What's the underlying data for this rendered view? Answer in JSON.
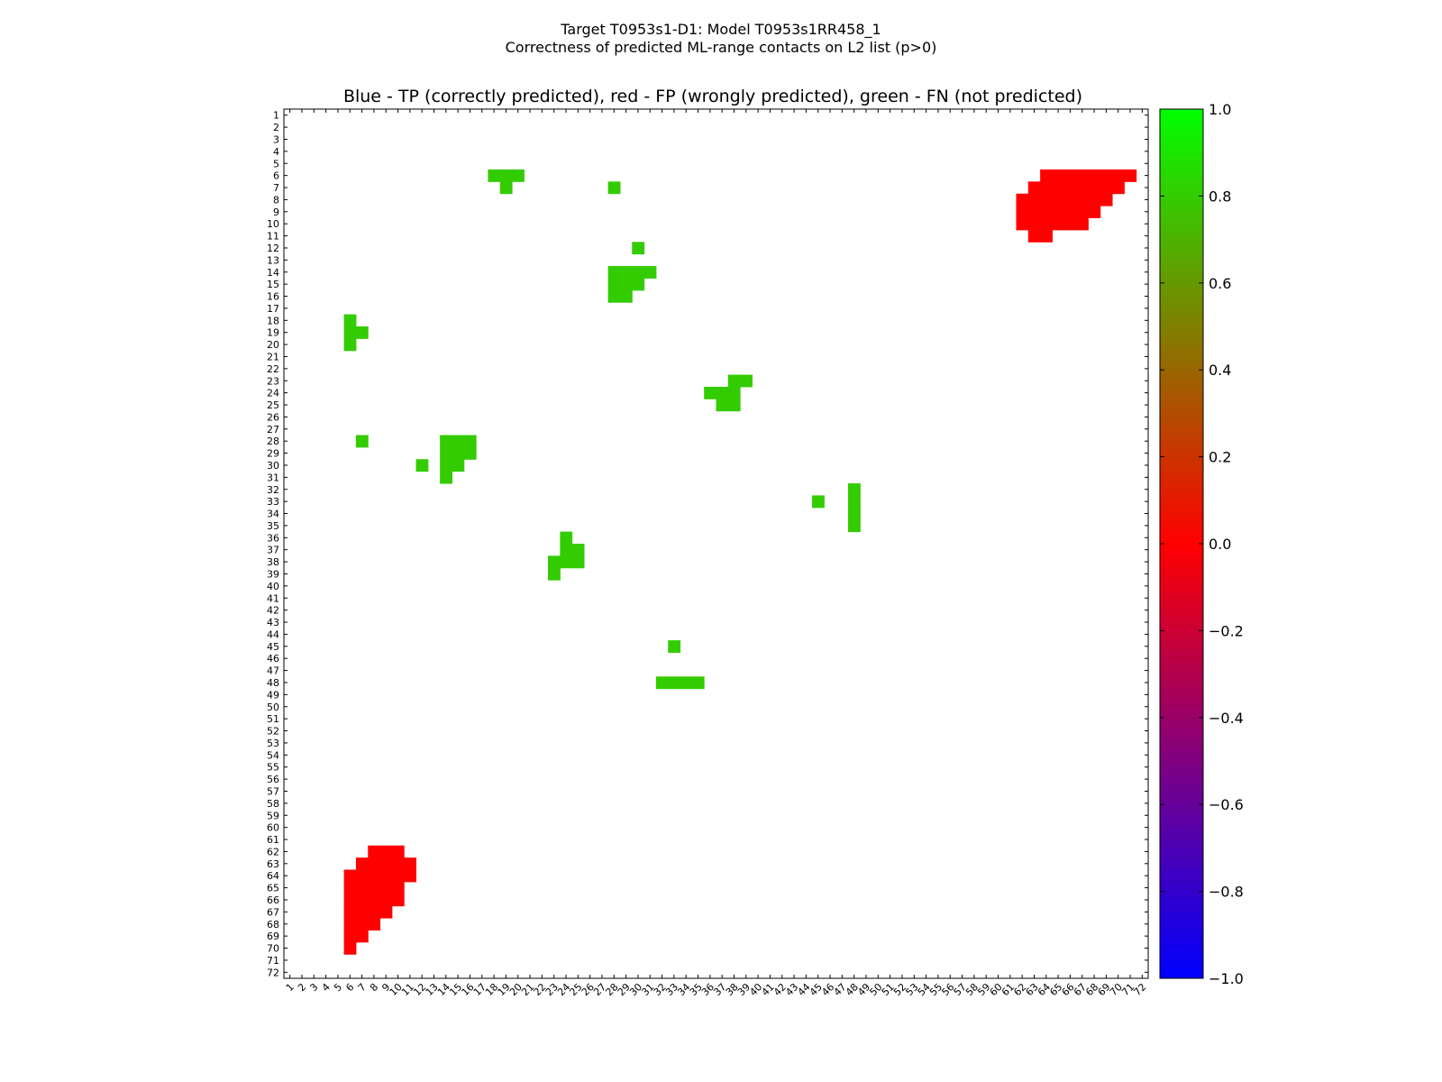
{
  "chart_data": {
    "type": "heatmap",
    "suptitle_line1": "Target T0953s1-D1: Model T0953s1RR458_1",
    "suptitle_line2": "Correctness of predicted ML-range contacts on L2 list (p>0)",
    "title": "Blue - TP (correctly predicted), red - FP (wrongly predicted), green - FN (not predicted)",
    "x_range": [
      1,
      72
    ],
    "y_range": [
      1,
      72
    ],
    "x_ticks": [
      1,
      2,
      3,
      4,
      5,
      6,
      7,
      8,
      9,
      10,
      11,
      12,
      13,
      14,
      15,
      16,
      17,
      18,
      19,
      20,
      21,
      22,
      23,
      24,
      25,
      26,
      27,
      28,
      29,
      30,
      31,
      32,
      33,
      34,
      35,
      36,
      37,
      38,
      39,
      40,
      41,
      42,
      43,
      44,
      45,
      46,
      47,
      48,
      49,
      50,
      51,
      52,
      53,
      54,
      55,
      56,
      57,
      58,
      59,
      60,
      61,
      62,
      63,
      64,
      65,
      66,
      67,
      68,
      69,
      70,
      71,
      72
    ],
    "x_tick_labels": [
      "1",
      "2",
      "3",
      "4",
      "5",
      "6",
      "7",
      "8",
      "9",
      "10",
      "11",
      "12",
      "13",
      "14",
      "15",
      "16",
      "17",
      "18",
      "19",
      "20",
      "21",
      "22",
      "23",
      "24",
      "25",
      "26",
      "27",
      "28",
      "29",
      "30",
      "31",
      "32",
      "33",
      "34",
      "35",
      "36",
      "37",
      "38",
      "39",
      "40",
      "41",
      "42",
      "43",
      "44",
      "45",
      "46",
      "47",
      "48",
      "49",
      "50",
      "51",
      "52",
      "53",
      "54",
      "55",
      "56",
      "57",
      "58",
      "59",
      "60",
      "61",
      "62",
      "63",
      "64",
      "65",
      "66",
      "67",
      "68",
      "69",
      "70",
      "71",
      "72"
    ],
    "y_ticks": [
      1,
      2,
      3,
      4,
      5,
      6,
      7,
      8,
      9,
      10,
      11,
      12,
      13,
      14,
      15,
      16,
      17,
      18,
      19,
      20,
      21,
      22,
      23,
      24,
      25,
      26,
      27,
      28,
      29,
      30,
      31,
      32,
      33,
      34,
      35,
      36,
      37,
      38,
      39,
      40,
      41,
      42,
      43,
      44,
      45,
      46,
      47,
      48,
      49,
      50,
      51,
      52,
      53,
      54,
      55,
      56,
      57,
      58,
      59,
      60,
      61,
      62,
      63,
      64,
      65,
      66,
      67,
      68,
      69,
      70,
      71,
      72
    ],
    "y_tick_labels": [
      "1",
      "2",
      "3",
      "4",
      "5",
      "6",
      "7",
      "8",
      "9",
      "10",
      "11",
      "12",
      "13",
      "14",
      "15",
      "16",
      "17",
      "18",
      "19",
      "20",
      "21",
      "22",
      "23",
      "24",
      "25",
      "26",
      "27",
      "28",
      "29",
      "30",
      "31",
      "32",
      "33",
      "34",
      "35",
      "36",
      "37",
      "38",
      "39",
      "40",
      "41",
      "42",
      "43",
      "44",
      "45",
      "46",
      "47",
      "48",
      "49",
      "50",
      "51",
      "52",
      "53",
      "54",
      "55",
      "56",
      "57",
      "58",
      "59",
      "60",
      "61",
      "62",
      "63",
      "64",
      "65",
      "66",
      "67",
      "68",
      "69",
      "70",
      "71",
      "72"
    ],
    "colorbar": {
      "min": -1.0,
      "max": 1.0,
      "ticks": [
        1.0,
        0.8,
        0.6,
        0.4,
        0.2,
        0.0,
        -0.2,
        -0.4,
        -0.6,
        -0.8,
        -1.0
      ],
      "tick_labels": [
        "1.0",
        "0.8",
        "0.6",
        "0.4",
        "0.2",
        "0.0",
        "−0.2",
        "−0.4",
        "−0.6",
        "−0.8",
        "−1.0"
      ]
    },
    "series": [
      {
        "category": "FN",
        "value": 0.8,
        "color": "#33cc00",
        "cells": [
          [
            18,
            6
          ],
          [
            19,
            6
          ],
          [
            20,
            6
          ],
          [
            19,
            7
          ],
          [
            28,
            7
          ],
          [
            30,
            12
          ],
          [
            28,
            14
          ],
          [
            29,
            14
          ],
          [
            30,
            14
          ],
          [
            31,
            14
          ],
          [
            28,
            15
          ],
          [
            29,
            15
          ],
          [
            30,
            15
          ],
          [
            28,
            16
          ],
          [
            29,
            16
          ],
          [
            6,
            18
          ],
          [
            6,
            19
          ],
          [
            7,
            19
          ],
          [
            6,
            20
          ],
          [
            38,
            23
          ],
          [
            39,
            23
          ],
          [
            36,
            24
          ],
          [
            37,
            24
          ],
          [
            38,
            24
          ],
          [
            37,
            25
          ],
          [
            38,
            25
          ],
          [
            7,
            28
          ],
          [
            14,
            28
          ],
          [
            15,
            28
          ],
          [
            16,
            28
          ],
          [
            14,
            29
          ],
          [
            15,
            29
          ],
          [
            16,
            29
          ],
          [
            12,
            30
          ],
          [
            14,
            30
          ],
          [
            15,
            30
          ],
          [
            14,
            31
          ],
          [
            48,
            32
          ],
          [
            45,
            33
          ],
          [
            48,
            33
          ],
          [
            48,
            34
          ],
          [
            48,
            35
          ],
          [
            24,
            36
          ],
          [
            24,
            37
          ],
          [
            25,
            37
          ],
          [
            23,
            38
          ],
          [
            24,
            38
          ],
          [
            25,
            38
          ],
          [
            23,
            39
          ],
          [
            33,
            45
          ],
          [
            32,
            48
          ],
          [
            33,
            48
          ],
          [
            34,
            48
          ],
          [
            35,
            48
          ]
        ]
      },
      {
        "category": "FP",
        "value": 0.0,
        "color": "#ff0000",
        "cells": [
          [
            64,
            6
          ],
          [
            65,
            6
          ],
          [
            66,
            6
          ],
          [
            67,
            6
          ],
          [
            68,
            6
          ],
          [
            69,
            6
          ],
          [
            70,
            6
          ],
          [
            71,
            6
          ],
          [
            63,
            7
          ],
          [
            64,
            7
          ],
          [
            65,
            7
          ],
          [
            66,
            7
          ],
          [
            67,
            7
          ],
          [
            68,
            7
          ],
          [
            69,
            7
          ],
          [
            70,
            7
          ],
          [
            62,
            8
          ],
          [
            63,
            8
          ],
          [
            64,
            8
          ],
          [
            65,
            8
          ],
          [
            66,
            8
          ],
          [
            67,
            8
          ],
          [
            68,
            8
          ],
          [
            69,
            8
          ],
          [
            62,
            9
          ],
          [
            63,
            9
          ],
          [
            64,
            9
          ],
          [
            65,
            9
          ],
          [
            66,
            9
          ],
          [
            67,
            9
          ],
          [
            68,
            9
          ],
          [
            62,
            10
          ],
          [
            63,
            10
          ],
          [
            64,
            10
          ],
          [
            65,
            10
          ],
          [
            66,
            10
          ],
          [
            67,
            10
          ],
          [
            63,
            11
          ],
          [
            64,
            11
          ],
          [
            8,
            62
          ],
          [
            9,
            62
          ],
          [
            10,
            62
          ],
          [
            7,
            63
          ],
          [
            8,
            63
          ],
          [
            9,
            63
          ],
          [
            10,
            63
          ],
          [
            11,
            63
          ],
          [
            6,
            64
          ],
          [
            7,
            64
          ],
          [
            8,
            64
          ],
          [
            9,
            64
          ],
          [
            10,
            64
          ],
          [
            11,
            64
          ],
          [
            6,
            65
          ],
          [
            7,
            65
          ],
          [
            8,
            65
          ],
          [
            9,
            65
          ],
          [
            10,
            65
          ],
          [
            6,
            66
          ],
          [
            7,
            66
          ],
          [
            8,
            66
          ],
          [
            9,
            66
          ],
          [
            10,
            66
          ],
          [
            6,
            67
          ],
          [
            7,
            67
          ],
          [
            8,
            67
          ],
          [
            9,
            67
          ],
          [
            6,
            68
          ],
          [
            7,
            68
          ],
          [
            8,
            68
          ],
          [
            6,
            69
          ],
          [
            7,
            69
          ],
          [
            6,
            70
          ]
        ]
      }
    ]
  }
}
